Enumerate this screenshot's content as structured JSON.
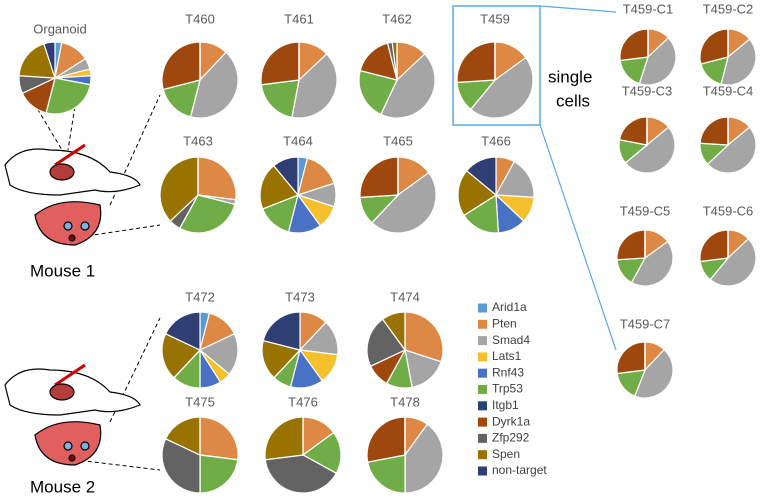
{
  "legend": {
    "series": [
      {
        "name": "Arid1a",
        "color": "#5b9bd5"
      },
      {
        "name": "Pten",
        "color": "#dd8844"
      },
      {
        "name": "Smad4",
        "color": "#a5a5a5"
      },
      {
        "name": "Lats1",
        "color": "#f5c02c"
      },
      {
        "name": "Rnf43",
        "color": "#4a72c4"
      },
      {
        "name": "Trp53",
        "color": "#70ad47"
      },
      {
        "name": "Itgb1",
        "color": "#264478"
      },
      {
        "name": "Dyrk1a",
        "color": "#9e480e"
      },
      {
        "name": "Zfp292",
        "color": "#636363"
      },
      {
        "name": "Spen",
        "color": "#997300"
      },
      {
        "name": "non-target",
        "color": "#2f3f73"
      }
    ]
  },
  "labels": {
    "single_cells": [
      "single",
      "cells"
    ],
    "mouse1": "Mouse 1",
    "mouse2": "Mouse 2"
  },
  "chart_data": [
    {
      "type": "pie",
      "title": "Organoid",
      "values": [
        3,
        13,
        5,
        3,
        4,
        26,
        0,
        14,
        8,
        19,
        5
      ]
    },
    {
      "type": "pie",
      "title": "T460",
      "values": [
        0,
        12,
        42,
        0,
        0,
        17,
        0,
        29,
        0,
        0,
        0
      ]
    },
    {
      "type": "pie",
      "title": "T461",
      "values": [
        0,
        13,
        40,
        0,
        0,
        20,
        0,
        27,
        0,
        0,
        0
      ]
    },
    {
      "type": "pie",
      "title": "T462",
      "values": [
        0,
        13,
        44,
        0,
        0,
        22,
        0,
        17,
        2,
        2,
        0
      ]
    },
    {
      "type": "pie",
      "title": "T459",
      "values": [
        0,
        15,
        46,
        0,
        0,
        13,
        0,
        26,
        0,
        0,
        0
      ]
    },
    {
      "type": "pie",
      "title": "T463",
      "values": [
        0,
        27,
        2,
        0,
        0,
        29,
        0,
        0,
        5,
        37,
        0
      ]
    },
    {
      "type": "pie",
      "title": "T464",
      "values": [
        4,
        16,
        10,
        10,
        14,
        15,
        0,
        0,
        0,
        20,
        11
      ]
    },
    {
      "type": "pie",
      "title": "T465",
      "values": [
        0,
        15,
        47,
        0,
        0,
        12,
        0,
        26,
        0,
        0,
        0
      ]
    },
    {
      "type": "pie",
      "title": "T466",
      "values": [
        0,
        8,
        18,
        11,
        12,
        17,
        0,
        0,
        0,
        20,
        14
      ]
    },
    {
      "type": "pie",
      "title": "T459-C1",
      "values": [
        0,
        13,
        42,
        0,
        0,
        18,
        0,
        27,
        0,
        0,
        0
      ]
    },
    {
      "type": "pie",
      "title": "T459-C2",
      "values": [
        0,
        14,
        40,
        0,
        0,
        17,
        0,
        29,
        0,
        0,
        0
      ]
    },
    {
      "type": "pie",
      "title": "T459-C3",
      "values": [
        0,
        14,
        50,
        0,
        0,
        14,
        0,
        22,
        0,
        0,
        0
      ]
    },
    {
      "type": "pie",
      "title": "T459-C4",
      "values": [
        0,
        14,
        49,
        0,
        0,
        13,
        0,
        24,
        0,
        0,
        0
      ]
    },
    {
      "type": "pie",
      "title": "T459-C5",
      "values": [
        0,
        15,
        43,
        0,
        0,
        16,
        0,
        26,
        0,
        0,
        0
      ]
    },
    {
      "type": "pie",
      "title": "T459-C6",
      "values": [
        0,
        13,
        48,
        0,
        0,
        12,
        0,
        27,
        0,
        0,
        0
      ]
    },
    {
      "type": "pie",
      "title": "T459-C7",
      "values": [
        0,
        12,
        44,
        0,
        0,
        17,
        0,
        27,
        0,
        0,
        0
      ]
    },
    {
      "type": "pie",
      "title": "T472",
      "values": [
        4,
        14,
        18,
        5,
        9,
        12,
        0,
        0,
        0,
        20,
        18
      ]
    },
    {
      "type": "pie",
      "title": "T473",
      "values": [
        0,
        12,
        15,
        13,
        14,
        8,
        0,
        0,
        0,
        17,
        21
      ]
    },
    {
      "type": "pie",
      "title": "T474",
      "values": [
        0,
        30,
        17,
        0,
        0,
        11,
        0,
        10,
        22,
        10,
        0
      ]
    },
    {
      "type": "pie",
      "title": "T475",
      "values": [
        0,
        27,
        0,
        0,
        0,
        23,
        0,
        0,
        32,
        18,
        0
      ]
    },
    {
      "type": "pie",
      "title": "T476",
      "values": [
        0,
        15,
        0,
        0,
        0,
        18,
        0,
        0,
        40,
        27,
        0
      ]
    },
    {
      "type": "pie",
      "title": "T478",
      "values": [
        0,
        10,
        40,
        0,
        0,
        22,
        0,
        28,
        0,
        0,
        0
      ]
    }
  ]
}
